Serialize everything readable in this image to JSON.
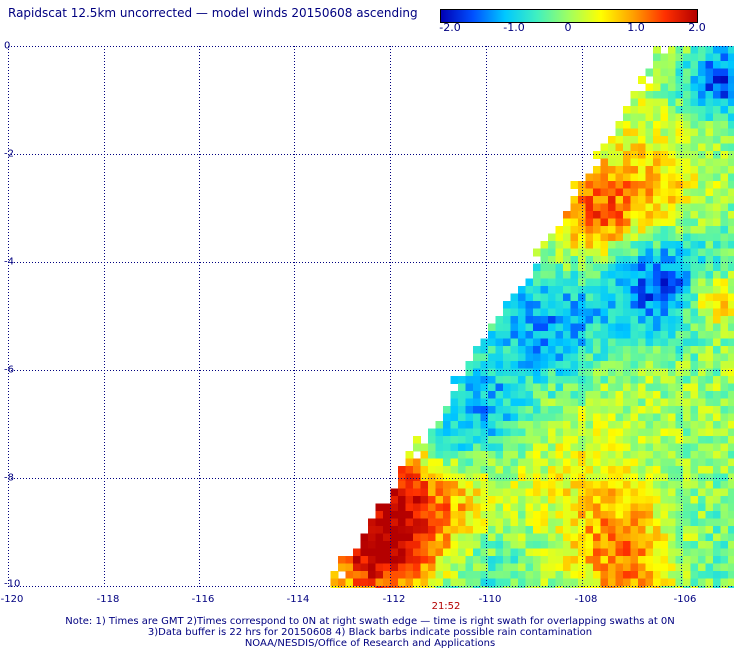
{
  "title": "Rapidscat 12.5km uncorrected — model winds 20150608 ascending",
  "colorbar": {
    "labels": [
      "-2.0",
      "-1.0",
      "0",
      "1.0",
      "2.0"
    ],
    "min": -2.0,
    "max": 2.0,
    "colors": [
      "#0000b4",
      "#0050ff",
      "#00c8ff",
      "#40f0c0",
      "#a0ff60",
      "#ffff00",
      "#ffa000",
      "#ff3000",
      "#b40000"
    ]
  },
  "axes": {
    "x_ticks": [
      "-120",
      "-118",
      "-116",
      "-114",
      "-112",
      "-110",
      "-108",
      "-106"
    ],
    "y_ticks": [
      "0",
      "-2",
      "-4",
      "-6",
      "-8",
      "-10"
    ],
    "lon_range": [
      -120,
      -104.7
    ],
    "lat_range": [
      0,
      -10
    ],
    "grid": true,
    "grid_color": "#000080"
  },
  "time_label": "21:52",
  "notes": [
    "Note: 1) Times are GMT 2)Times correspond to 0N at right swath edge — time is right swath for overlapping swaths at 0N",
    "3)Data buffer is 22 hrs for 20150608 4) Black barbs indicate possible rain contamination",
    "NOAA/NESDIS/Office of Research and Applications"
  ]
}
